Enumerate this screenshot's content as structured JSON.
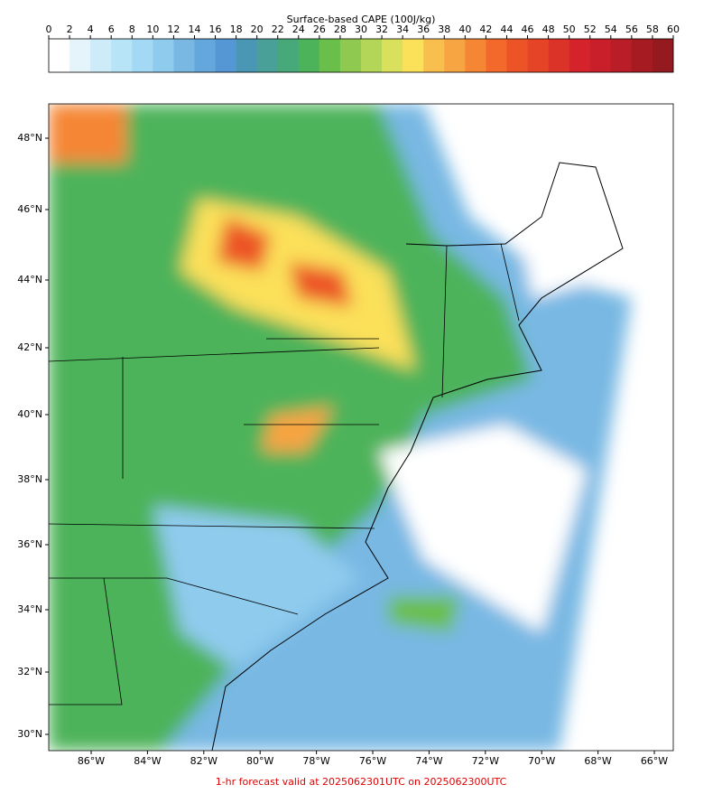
{
  "colorbar": {
    "title": "Surface-based CAPE (100J/kg)",
    "ticks": [
      0,
      2,
      4,
      6,
      8,
      10,
      12,
      14,
      16,
      18,
      20,
      22,
      24,
      26,
      28,
      30,
      32,
      34,
      36,
      38,
      40,
      42,
      44,
      46,
      48,
      50,
      52,
      54,
      56,
      58,
      60
    ],
    "colors": [
      "#ffffff",
      "#e5f4fb",
      "#cdebf8",
      "#b7e4f7",
      "#a3d9f4",
      "#8fcbed",
      "#78b8e3",
      "#64a7dc",
      "#5596d4",
      "#4a97b5",
      "#48a098",
      "#47a87a",
      "#4db35a",
      "#6abf4b",
      "#8fc94f",
      "#b3d658",
      "#d9e05c",
      "#fbe05a",
      "#f9bf4e",
      "#f7a443",
      "#f58634",
      "#f2692b",
      "#ec5428",
      "#e54427",
      "#dc3328",
      "#d4232b",
      "#c81f2a",
      "#b91d27",
      "#a61b22",
      "#951a1f"
    ]
  },
  "map": {
    "lat_labels": [
      "48°N",
      "46°N",
      "44°N",
      "42°N",
      "40°N",
      "38°N",
      "36°N",
      "34°N",
      "32°N",
      "30°N"
    ],
    "lon_labels": [
      "86°W",
      "84°W",
      "82°W",
      "80°W",
      "78°W",
      "76°W",
      "74°W",
      "72°W",
      "70°W",
      "68°W",
      "66°W"
    ]
  },
  "footer": "1-hr forecast valid at 2025062301UTC on 2025062300UTC"
}
